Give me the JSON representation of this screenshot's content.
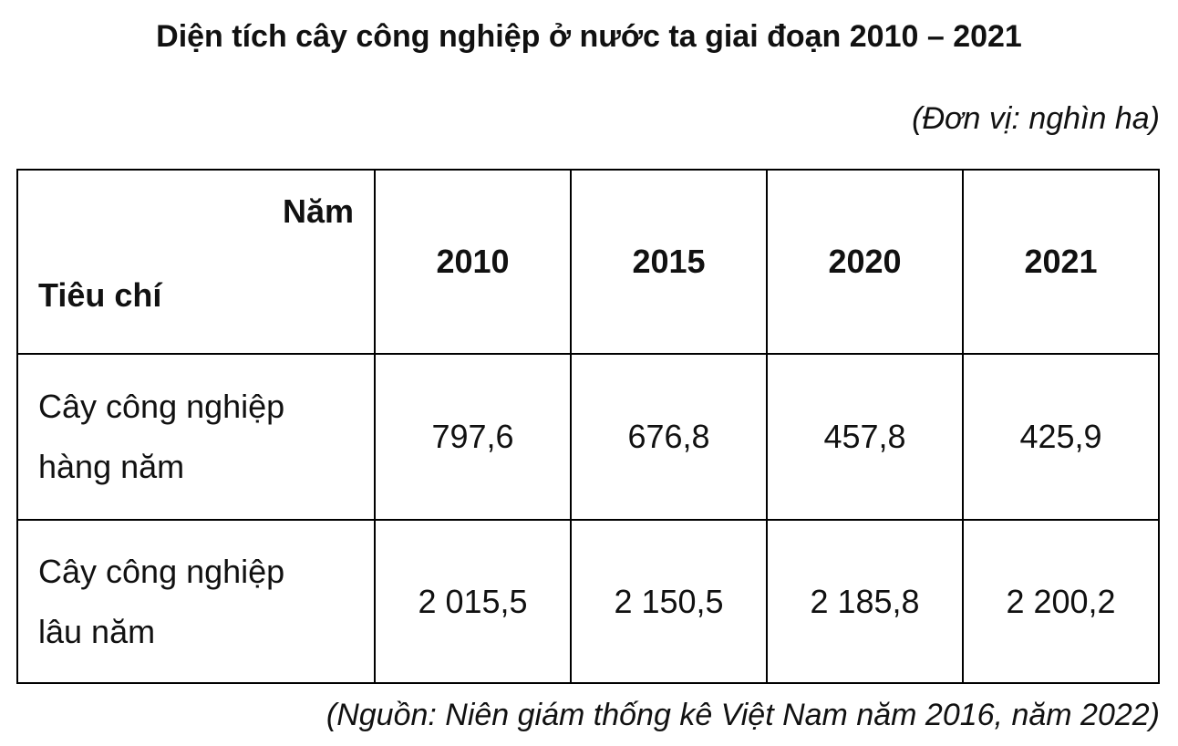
{
  "title": "Diện tích cây công nghiệp ở nước ta giai đoạn 2010 – 2021",
  "unit": "(Đơn vị: nghìn ha)",
  "table": {
    "corner": {
      "top": "Năm",
      "bottom": "Tiêu chí"
    },
    "columns": [
      "2010",
      "2015",
      "2020",
      "2021"
    ],
    "rows": [
      {
        "label": "Cây công nghiệp hàng năm",
        "values": [
          "797,6",
          "676,8",
          "457,8",
          "425,9"
        ]
      },
      {
        "label": "Cây công nghiệp lâu năm",
        "values": [
          "2 015,5",
          "2 150,5",
          "2 185,8",
          "2 200,2"
        ]
      }
    ]
  },
  "source": "(Nguồn: Niên giám thống kê Việt Nam năm 2016, năm 2022)"
}
